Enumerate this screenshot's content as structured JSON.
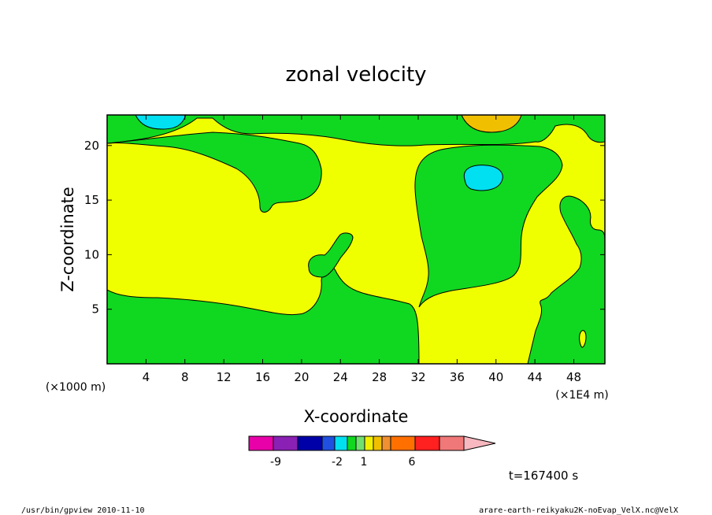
{
  "chart_data": {
    "type": "heatmap",
    "title": "zonal velocity",
    "xlabel": "X-coordinate",
    "ylabel": "Z-coordinate",
    "x_scale_note": "(×1000 m)",
    "x_far_note": "(×1E4 m)",
    "xlim": [
      0,
      51.2
    ],
    "ylim": [
      0,
      22.8
    ],
    "x_ticks": [
      "4",
      "8",
      "12",
      "16",
      "20",
      "24",
      "28",
      "32",
      "36",
      "40",
      "44",
      "48"
    ],
    "y_ticks": [
      "5",
      "10",
      "15",
      "20"
    ],
    "time_label": "t=167400 s",
    "colorbar": {
      "colors": [
        "#e800a8",
        "#8a20b4",
        "#0000a8",
        "#2050e0",
        "#00e0f0",
        "#10d820",
        "#70e070",
        "#f0f000",
        "#f0c000",
        "#f09030",
        "#ff7000",
        "#ff2020",
        "#f07878",
        "#f8b8c0"
      ],
      "labels": [
        "-9",
        "-2",
        "1",
        "6"
      ]
    },
    "regions": [
      {
        "value": "positive",
        "color": "#f0ff00",
        "location": "background"
      },
      {
        "value": "slightly negative",
        "color": "#10d820",
        "location": "lower band z < 6, left side"
      },
      {
        "value": "slightly negative",
        "color": "#10d820",
        "location": "upper band z > 20"
      },
      {
        "value": "slightly negative",
        "color": "#10d820",
        "location": "central blob x 32-47, z 5-20"
      },
      {
        "value": "negative",
        "color": "#00e0f0",
        "location": "x 38, z 17"
      },
      {
        "value": "negative",
        "color": "#00e0f0",
        "location": "x 5, z 22.5"
      },
      {
        "value": "positive",
        "color": "#f0c000",
        "location": "x 39, z 22.5"
      }
    ]
  },
  "footer": {
    "left": "/usr/bin/gpview   2010-11-10",
    "right": "arare-earth-reikyaku2K-noEvap_VelX.nc@VelX"
  }
}
